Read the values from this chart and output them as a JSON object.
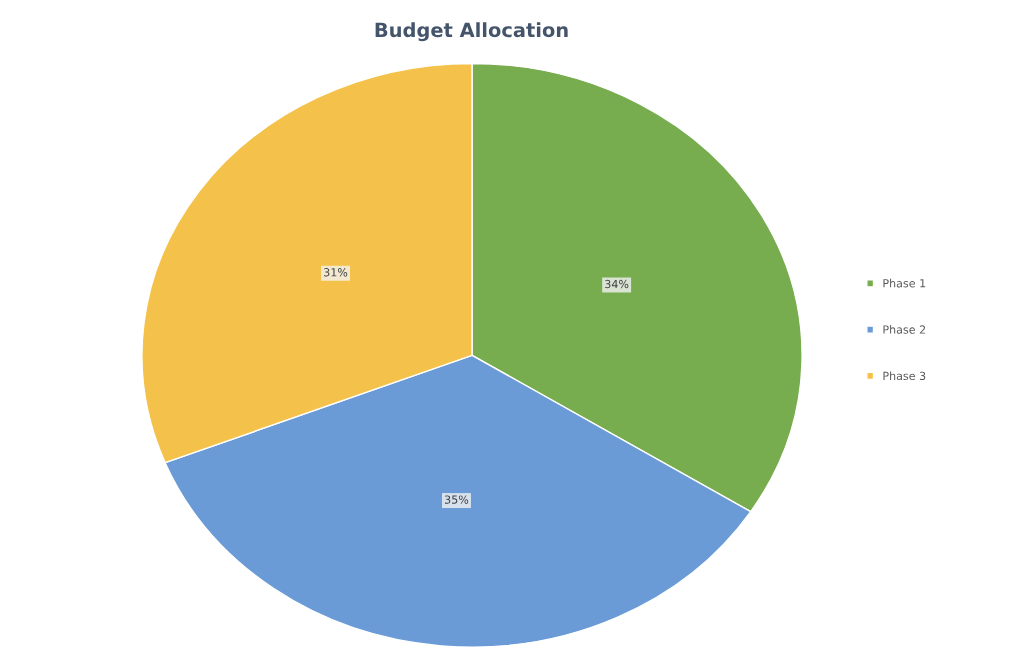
{
  "chart_data": {
    "type": "pie",
    "title": "Budget Allocation",
    "categories": [
      "Phase 1",
      "Phase 2",
      "Phase 3"
    ],
    "values": [
      34,
      35,
      31
    ],
    "colors": [
      "#77ac4f",
      "#6a9bd6",
      "#f4c24a"
    ],
    "value_labels": [
      "34%",
      "35%",
      "31%"
    ],
    "legend": "right"
  }
}
